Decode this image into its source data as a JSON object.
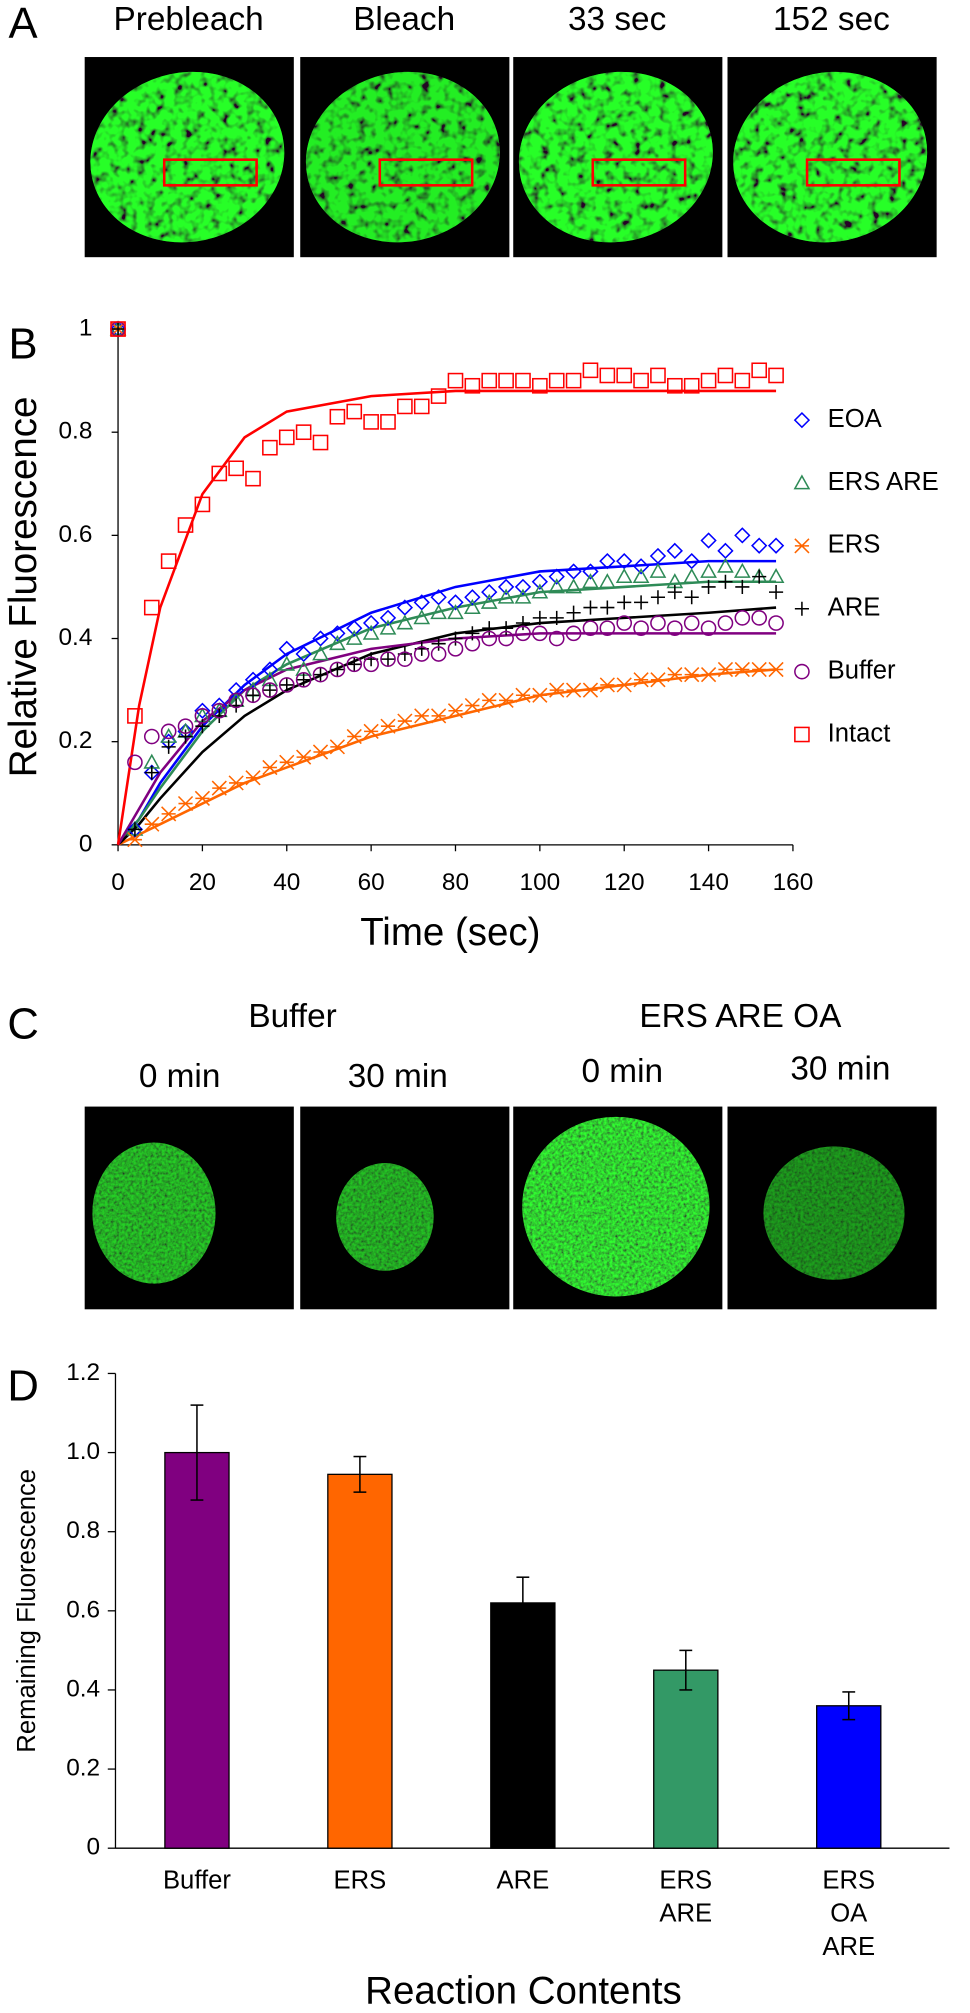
{
  "panel_a": {
    "label": "A",
    "frames": [
      "Prebleach",
      "Bleach",
      "33 sec",
      "152 sec"
    ]
  },
  "panel_c": {
    "label": "C",
    "groups": [
      "Buffer",
      "ERS ARE OA"
    ],
    "frames": [
      "0 min",
      "30 min",
      "0 min",
      "30 min"
    ]
  },
  "chart_data": [
    {
      "type": "scatter",
      "panel_label": "B",
      "x_label": "Time (sec)",
      "y_label": "Relative Fluorescence",
      "xlim": [
        0,
        160
      ],
      "ylim": [
        0,
        1
      ],
      "xticks": [
        0,
        20,
        40,
        60,
        80,
        100,
        120,
        140,
        160
      ],
      "yticks": [
        0,
        0.2,
        0.4,
        0.6,
        0.8,
        1
      ],
      "x": [
        0,
        4,
        8,
        12,
        16,
        20,
        24,
        28,
        32,
        36,
        40,
        44,
        48,
        52,
        56,
        60,
        64,
        68,
        72,
        76,
        80,
        84,
        88,
        92,
        96,
        100,
        104,
        108,
        112,
        116,
        120,
        124,
        128,
        132,
        136,
        140,
        144,
        148,
        152,
        156
      ],
      "fit_x": [
        0,
        5,
        10,
        20,
        30,
        40,
        60,
        80,
        100,
        120,
        140,
        156
      ],
      "legend": "right",
      "series": [
        {
          "name": "EOA",
          "color": "#0000ff",
          "marker": "diamond",
          "values": [
            1,
            0.03,
            0.14,
            0.2,
            0.22,
            0.26,
            0.27,
            0.3,
            0.32,
            0.34,
            0.38,
            0.37,
            0.4,
            0.41,
            0.42,
            0.43,
            0.44,
            0.46,
            0.47,
            0.48,
            0.47,
            0.48,
            0.49,
            0.5,
            0.5,
            0.51,
            0.52,
            0.53,
            0.53,
            0.55,
            0.55,
            0.54,
            0.56,
            0.57,
            0.55,
            0.59,
            0.57,
            0.6,
            0.58,
            0.58
          ],
          "fit": [
            0,
            0.05,
            0.12,
            0.23,
            0.31,
            0.37,
            0.45,
            0.5,
            0.53,
            0.54,
            0.55,
            0.55
          ]
        },
        {
          "name": "ERS ARE",
          "color": "#2e8b57",
          "marker": "triangle",
          "values": [
            1,
            0.03,
            0.16,
            0.21,
            0.22,
            0.25,
            0.26,
            0.28,
            0.3,
            0.32,
            0.35,
            0.34,
            0.37,
            0.39,
            0.4,
            0.41,
            0.42,
            0.43,
            0.44,
            0.45,
            0.45,
            0.46,
            0.47,
            0.48,
            0.48,
            0.49,
            0.5,
            0.5,
            0.51,
            0.51,
            0.52,
            0.52,
            0.53,
            0.51,
            0.52,
            0.53,
            0.54,
            0.53,
            0.52,
            0.52
          ],
          "fit": [
            0,
            0.05,
            0.11,
            0.22,
            0.3,
            0.35,
            0.42,
            0.46,
            0.49,
            0.5,
            0.51,
            0.51
          ]
        },
        {
          "name": "ERS",
          "color": "#ff6600",
          "marker": "asterisk",
          "values": [
            1,
            0.01,
            0.04,
            0.06,
            0.08,
            0.09,
            0.11,
            0.12,
            0.13,
            0.15,
            0.16,
            0.17,
            0.18,
            0.19,
            0.21,
            0.22,
            0.23,
            0.24,
            0.25,
            0.25,
            0.26,
            0.27,
            0.28,
            0.28,
            0.29,
            0.29,
            0.3,
            0.3,
            0.3,
            0.31,
            0.31,
            0.32,
            0.32,
            0.33,
            0.33,
            0.33,
            0.34,
            0.34,
            0.34,
            0.34
          ],
          "fit": [
            0,
            0.02,
            0.04,
            0.08,
            0.12,
            0.15,
            0.21,
            0.25,
            0.29,
            0.31,
            0.33,
            0.34
          ]
        },
        {
          "name": "ARE",
          "color": "#000000",
          "marker": "plus",
          "values": [
            1,
            0.03,
            0.14,
            0.19,
            0.21,
            0.23,
            0.25,
            0.27,
            0.29,
            0.3,
            0.31,
            0.32,
            0.33,
            0.34,
            0.35,
            0.36,
            0.36,
            0.37,
            0.38,
            0.39,
            0.4,
            0.41,
            0.42,
            0.42,
            0.43,
            0.44,
            0.44,
            0.45,
            0.46,
            0.46,
            0.47,
            0.47,
            0.48,
            0.49,
            0.48,
            0.5,
            0.51,
            0.5,
            0.52,
            0.49
          ],
          "fit": [
            0,
            0.04,
            0.09,
            0.18,
            0.25,
            0.3,
            0.37,
            0.41,
            0.43,
            0.44,
            0.45,
            0.46
          ]
        },
        {
          "name": "Buffer",
          "color": "#800080",
          "marker": "circle",
          "values": [
            1,
            0.16,
            0.21,
            0.22,
            0.23,
            0.25,
            0.26,
            0.28,
            0.29,
            0.3,
            0.31,
            0.32,
            0.33,
            0.34,
            0.35,
            0.35,
            0.36,
            0.36,
            0.37,
            0.37,
            0.38,
            0.39,
            0.4,
            0.4,
            0.41,
            0.41,
            0.4,
            0.41,
            0.42,
            0.42,
            0.43,
            0.42,
            0.43,
            0.42,
            0.43,
            0.42,
            0.43,
            0.44,
            0.44,
            0.43
          ],
          "fit": [
            0,
            0.07,
            0.14,
            0.24,
            0.3,
            0.34,
            0.38,
            0.4,
            0.41,
            0.41,
            0.41,
            0.41
          ]
        },
        {
          "name": "Intact",
          "color": "#ff0000",
          "marker": "square",
          "values": [
            1,
            0.25,
            0.46,
            0.55,
            0.62,
            0.66,
            0.72,
            0.73,
            0.71,
            0.77,
            0.79,
            0.8,
            0.78,
            0.83,
            0.84,
            0.82,
            0.82,
            0.85,
            0.85,
            0.87,
            0.9,
            0.89,
            0.9,
            0.9,
            0.9,
            0.89,
            0.9,
            0.9,
            0.92,
            0.91,
            0.91,
            0.9,
            0.91,
            0.89,
            0.89,
            0.9,
            0.91,
            0.9,
            0.92,
            0.91
          ],
          "fit": [
            0,
            0.27,
            0.46,
            0.68,
            0.79,
            0.84,
            0.87,
            0.88,
            0.88,
            0.88,
            0.88,
            0.88
          ]
        }
      ]
    },
    {
      "type": "bar",
      "panel_label": "D",
      "x_label": "Reaction Contents",
      "y_label": "Remaining Fluorescence",
      "ylim": [
        0,
        1.2
      ],
      "yticks": [
        0,
        0.2,
        0.4,
        0.6,
        0.8,
        {
          "value": 1,
          "label": "1.0"
        },
        1.2
      ],
      "categories": [
        [
          "Buffer"
        ],
        [
          "ERS"
        ],
        [
          "ARE"
        ],
        [
          "ERS",
          "ARE"
        ],
        [
          "ERS",
          "OA",
          "ARE"
        ]
      ],
      "values": [
        1.0,
        0.945,
        0.62,
        0.45,
        0.36
      ],
      "errors": [
        0.12,
        0.045,
        0.065,
        0.05,
        0.035
      ],
      "colors": [
        "#800080",
        "#ff6600",
        "#000000",
        "#339966",
        "#0000ff"
      ]
    }
  ]
}
